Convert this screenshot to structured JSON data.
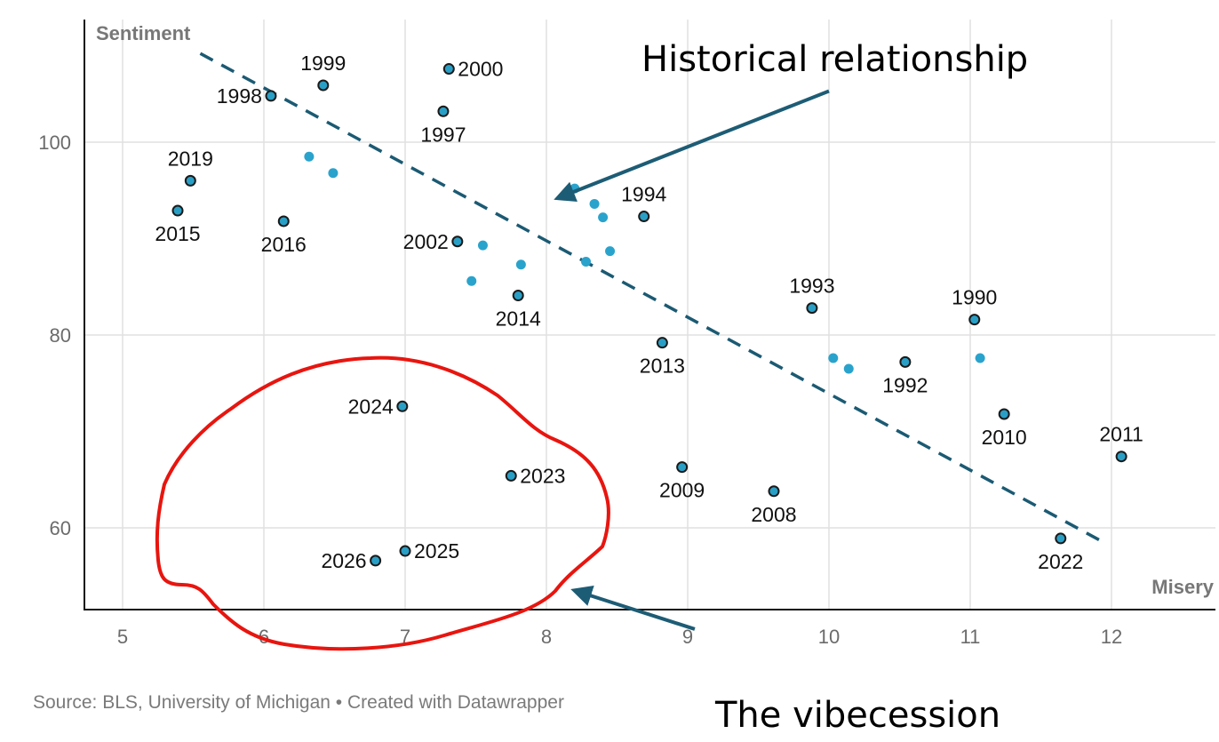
{
  "chart_data": {
    "type": "scatter",
    "title": "",
    "xlabel": "Misery",
    "ylabel": "Sentiment",
    "xlim": [
      4.8,
      12.75
    ],
    "ylim": [
      51.8,
      113
    ],
    "x_ticks": [
      5,
      6,
      7,
      8,
      9,
      10,
      11,
      12
    ],
    "y_ticks": [
      60,
      80,
      100
    ],
    "grid": true,
    "colors": {
      "point_fill": "#2a9fc6",
      "point_stroke": "#1a1a1a",
      "unlabeled_point": "#2aa3cc",
      "trend_line": "#1b5a73",
      "arrow": "#1d5c75",
      "circle_highlight": "#e8150f",
      "grid": "#e0e0e0",
      "axis": "#111111"
    },
    "labeled_points": [
      {
        "label": "1990",
        "x": 11.03,
        "y": 81.6,
        "pos": "above"
      },
      {
        "label": "1992",
        "x": 10.54,
        "y": 77.2,
        "pos": "below"
      },
      {
        "label": "1993",
        "x": 9.88,
        "y": 82.8,
        "pos": "above"
      },
      {
        "label": "1994",
        "x": 8.69,
        "y": 92.3,
        "pos": "above"
      },
      {
        "label": "1997",
        "x": 7.27,
        "y": 103.2,
        "pos": "below"
      },
      {
        "label": "1998",
        "x": 6.05,
        "y": 104.8,
        "pos": "left"
      },
      {
        "label": "1999",
        "x": 6.42,
        "y": 105.9,
        "pos": "above"
      },
      {
        "label": "2000",
        "x": 7.31,
        "y": 107.6,
        "pos": "right"
      },
      {
        "label": "2002",
        "x": 7.37,
        "y": 89.7,
        "pos": "left"
      },
      {
        "label": "2008",
        "x": 9.61,
        "y": 63.8,
        "pos": "below"
      },
      {
        "label": "2009",
        "x": 8.96,
        "y": 66.3,
        "pos": "below"
      },
      {
        "label": "2010",
        "x": 11.24,
        "y": 71.8,
        "pos": "below"
      },
      {
        "label": "2011",
        "x": 12.07,
        "y": 67.4,
        "pos": "above"
      },
      {
        "label": "2013",
        "x": 8.82,
        "y": 79.2,
        "pos": "below"
      },
      {
        "label": "2014",
        "x": 7.8,
        "y": 84.1,
        "pos": "below"
      },
      {
        "label": "2015",
        "x": 5.39,
        "y": 92.9,
        "pos": "below"
      },
      {
        "label": "2016",
        "x": 6.14,
        "y": 91.8,
        "pos": "below"
      },
      {
        "label": "2019",
        "x": 5.48,
        "y": 96.0,
        "pos": "above"
      },
      {
        "label": "2022",
        "x": 11.64,
        "y": 58.9,
        "pos": "below"
      },
      {
        "label": "2023",
        "x": 7.75,
        "y": 65.4,
        "pos": "right"
      },
      {
        "label": "2024",
        "x": 6.98,
        "y": 72.6,
        "pos": "left"
      },
      {
        "label": "2025",
        "x": 7.0,
        "y": 57.6,
        "pos": "right"
      },
      {
        "label": "2026",
        "x": 6.79,
        "y": 56.6,
        "pos": "left"
      }
    ],
    "unlabeled_points": [
      {
        "x": 6.32,
        "y": 98.5
      },
      {
        "x": 6.49,
        "y": 96.8
      },
      {
        "x": 7.47,
        "y": 85.6
      },
      {
        "x": 7.55,
        "y": 89.3
      },
      {
        "x": 7.82,
        "y": 87.3
      },
      {
        "x": 8.2,
        "y": 95.2
      },
      {
        "x": 8.34,
        "y": 93.6
      },
      {
        "x": 8.4,
        "y": 92.2
      },
      {
        "x": 8.28,
        "y": 87.6
      },
      {
        "x": 8.45,
        "y": 88.7
      },
      {
        "x": 10.03,
        "y": 77.6
      },
      {
        "x": 10.14,
        "y": 76.5
      },
      {
        "x": 11.07,
        "y": 77.6
      }
    ],
    "trend_line": {
      "label": "Historical relationship",
      "x1": 5.55,
      "y1": 109.2,
      "x2": 11.97,
      "y2": 58.3,
      "style": "dashed"
    },
    "annotations": [
      {
        "text": "Historical relationship",
        "arrow_from": [
          10.0,
          105.3
        ],
        "arrow_to": [
          8.08,
          94.2
        ]
      },
      {
        "text": "The vibecession",
        "arrow_from": [
          9.05,
          49.5
        ],
        "arrow_to": [
          8.2,
          53.5
        ]
      }
    ],
    "highlight_region": {
      "description": "hand-drawn red circle around 2023–2026",
      "center_x": 6.9,
      "center_y": 61.5
    }
  },
  "footer": {
    "source": "Source: BLS, University of Michigan • Created with Datawrapper"
  }
}
